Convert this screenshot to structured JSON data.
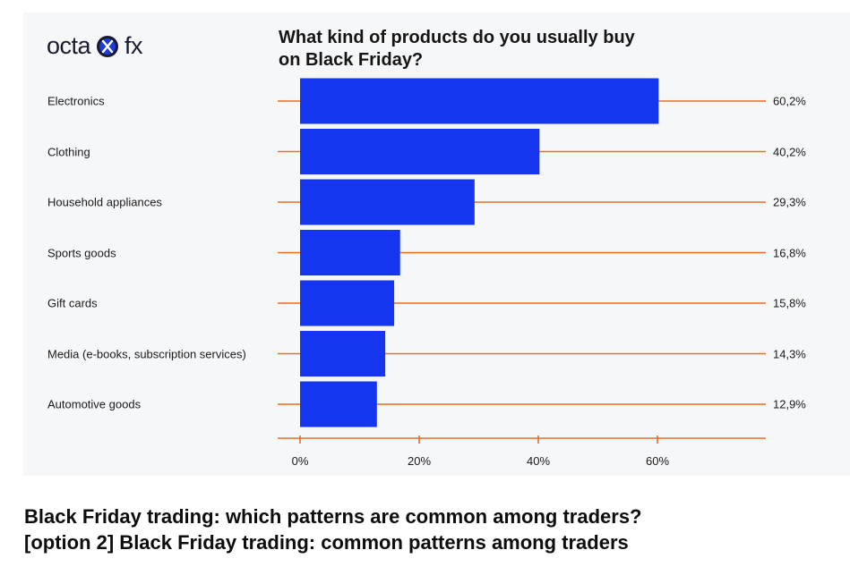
{
  "brand": {
    "name_left": "octa",
    "name_right": "fx",
    "logo_icon": "octafx-logo-icon",
    "icon_color": "#1f3bd6"
  },
  "chart_data": {
    "type": "bar",
    "orientation": "horizontal",
    "title": "What kind of products do you usually buy on Black Friday?",
    "categories": [
      "Electronics",
      "Clothing",
      "Household appliances",
      "Sports goods",
      "Gift cards",
      "Media (e-books, subscription services)",
      "Automotive goods"
    ],
    "values": [
      60.2,
      40.2,
      29.3,
      16.8,
      15.8,
      14.3,
      12.9
    ],
    "value_labels": [
      "60,2%",
      "40,2%",
      "29,3%",
      "16,8%",
      "15,8%",
      "14,3%",
      "12,9%"
    ],
    "x_ticks": [
      "0%",
      "20%",
      "40%",
      "60%"
    ],
    "xlim": [
      0,
      78
    ],
    "xlabel": "",
    "ylabel": "",
    "bar_color": "#1535ee",
    "guide_color": "#f06a1f",
    "grid": false,
    "legend": "none"
  },
  "caption": {
    "line1": "Black Friday trading: which patterns are common among traders?",
    "line2": "[option 2] Black Friday trading: common patterns among traders"
  }
}
